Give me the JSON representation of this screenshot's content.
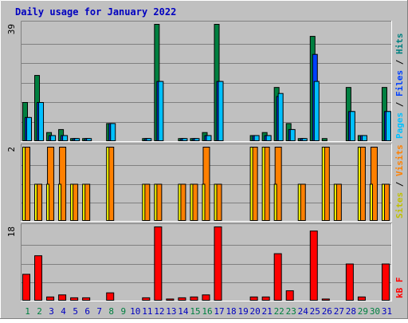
{
  "chart_data": {
    "type": "bar",
    "title": "Daily usage for January 2022",
    "days": [
      "1",
      "2",
      "3",
      "4",
      "5",
      "6",
      "7",
      "8",
      "9",
      "10",
      "11",
      "12",
      "13",
      "14",
      "15",
      "16",
      "17",
      "18",
      "19",
      "20",
      "21",
      "22",
      "23",
      "24",
      "25",
      "26",
      "27",
      "28",
      "29",
      "30",
      "31"
    ],
    "weekend_days": [
      1,
      2,
      8,
      9,
      15,
      16,
      22,
      23,
      29,
      30
    ],
    "panels": [
      {
        "id": "hits",
        "max_label": "39",
        "ymax": 39,
        "legend": [
          "Pages",
          "/",
          "Files",
          "/",
          "Hits"
        ],
        "series": [
          {
            "name": "Hits",
            "color": "#008040",
            "values": [
              13,
              22,
              3,
              4,
              1,
              1,
              0,
              6,
              0,
              0,
              1,
              39,
              0,
              1,
              1,
              3,
              39,
              0,
              0,
              2,
              3,
              18,
              6,
              1,
              35,
              1,
              0,
              18,
              2,
              0,
              18
            ]
          },
          {
            "name": "Files",
            "color": "#0040ff",
            "values": [
              8,
              13,
              2,
              2,
              1,
              1,
              0,
              6,
              0,
              0,
              1,
              20,
              0,
              1,
              1,
              2,
              20,
              0,
              0,
              2,
              2,
              15,
              4,
              1,
              29,
              0,
              0,
              10,
              2,
              0,
              10
            ]
          },
          {
            "name": "Pages",
            "color": "#00c0ff",
            "values": [
              8,
              13,
              2,
              2,
              1,
              1,
              0,
              6,
              0,
              0,
              1,
              20,
              0,
              1,
              1,
              2,
              20,
              0,
              0,
              2,
              2,
              16,
              4,
              1,
              20,
              0,
              0,
              10,
              2,
              0,
              10
            ]
          }
        ]
      },
      {
        "id": "visits",
        "max_label": "2",
        "ymax": 2,
        "legend": [
          "Sites",
          "/",
          "Visits"
        ],
        "series": [
          {
            "name": "Visits",
            "color": "#ff8000",
            "values": [
              2,
              1,
              2,
              2,
              1,
              1,
              0,
              2,
              0,
              0,
              1,
              1,
              0,
              1,
              1,
              2,
              1,
              0,
              0,
              2,
              2,
              2,
              0,
              1,
              0,
              2,
              1,
              0,
              2,
              2,
              1
            ]
          },
          {
            "name": "Sites",
            "color": "#ffff00",
            "values": [
              2,
              1,
              1,
              1,
              1,
              1,
              0,
              2,
              0,
              0,
              1,
              1,
              0,
              1,
              1,
              1,
              1,
              0,
              0,
              2,
              2,
              1,
              0,
              1,
              0,
              2,
              1,
              0,
              2,
              1,
              1
            ]
          }
        ]
      },
      {
        "id": "kbytes",
        "max_label": "18",
        "ymax": 18,
        "legend": [
          "kB",
          "F"
        ],
        "series": [
          {
            "name": "kB F",
            "color": "#ff0000",
            "values": [
              6.5,
              11,
              1,
              1.5,
              0.8,
              0.8,
              0,
              2,
              0,
              0,
              0.8,
              18,
              0.5,
              0.8,
              1,
              1.5,
              18,
              0,
              0,
              1,
              1,
              11.5,
              2.5,
              0,
              17,
              0.5,
              0,
              9,
              1,
              0,
              9
            ]
          }
        ]
      }
    ],
    "colors": {
      "background": "#c0c0c0",
      "title": "#0000c0",
      "weekday_label": "#0000c0",
      "weekend_label": "#008040",
      "grid": "#808080",
      "legend_pages": "#00c0ff",
      "legend_files": "#0040ff",
      "legend_hits": "#008080",
      "legend_sites": "#c0c000",
      "legend_visits": "#ff8000",
      "legend_kb": "#ff0000"
    }
  }
}
